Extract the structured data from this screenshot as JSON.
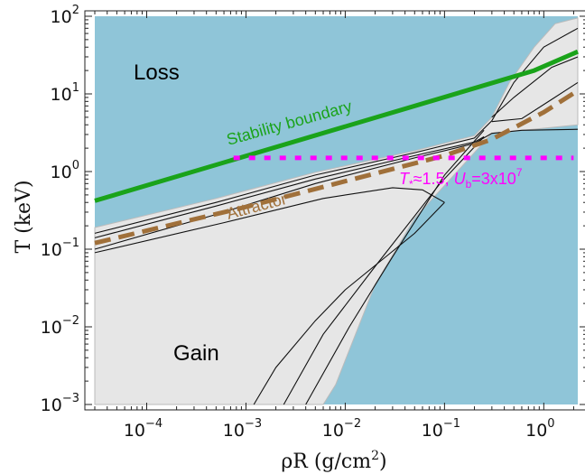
{
  "chart_data": {
    "type": "line",
    "title": "",
    "xlabel": "ρR (g/cm²)",
    "xlabel_base": "ρR (g/cm",
    "xlabel_sup": "2",
    "xlabel_end": ")",
    "ylabel": "T (keV)",
    "x_scale": "log",
    "y_scale": "log",
    "xlim": [
      3e-05,
      2.2
    ],
    "ylim": [
      0.001,
      100
    ],
    "x_ticks": [
      {
        "value": 0.0001,
        "base": "10",
        "exp": "−4"
      },
      {
        "value": 0.001,
        "base": "10",
        "exp": "−3"
      },
      {
        "value": 0.01,
        "base": "10",
        "exp": "−2"
      },
      {
        "value": 0.1,
        "base": "10",
        "exp": "−1"
      },
      {
        "value": 1,
        "base": "10",
        "exp": "0"
      }
    ],
    "y_ticks": [
      {
        "value": 0.001,
        "base": "10",
        "exp": "−3"
      },
      {
        "value": 0.01,
        "base": "10",
        "exp": "−2"
      },
      {
        "value": 0.1,
        "base": "10",
        "exp": "−1"
      },
      {
        "value": 1,
        "base": "10",
        "exp": "0"
      },
      {
        "value": 10,
        "base": "10",
        "exp": "1"
      },
      {
        "value": 100,
        "base": "10",
        "exp": "2"
      }
    ],
    "grid": false,
    "regions": {
      "loss_label": "Loss",
      "gain_label": "Gain",
      "loss_color": "#8fc5d8",
      "gain_color": "#e6e6e6"
    },
    "series": [
      {
        "name": "Stability boundary",
        "style": "solid",
        "color": "#1aa31a",
        "x": [
          3e-05,
          0.8,
          2.2
        ],
        "y": [
          0.42,
          20,
          35
        ]
      },
      {
        "name": "Attractor",
        "style": "dashed",
        "color": "#a0703a",
        "x": [
          3e-05,
          0.001,
          0.01,
          0.1,
          0.3,
          1,
          2.2
        ],
        "y": [
          0.12,
          0.35,
          0.75,
          1.6,
          2.6,
          5.8,
          11
        ]
      },
      {
        "name": "T*≈1.5, Ub=3x10^7",
        "style": "dotted",
        "color": "#ff00ff",
        "x": [
          0.00075,
          2.0
        ],
        "y": [
          1.5,
          1.5
        ]
      }
    ],
    "contours": [
      {
        "x": [
          3e-05,
          0.0005,
          0.005,
          0.05,
          0.2,
          0.3,
          0.5,
          1,
          2.2
        ],
        "y": [
          0.16,
          0.4,
          0.9,
          1.75,
          2.7,
          4.5,
          14,
          40,
          70
        ]
      },
      {
        "x": [
          3e-05,
          0.0005,
          0.005,
          0.05,
          0.2,
          0.25
        ],
        "y": [
          0.14,
          0.36,
          0.8,
          1.6,
          2.4,
          2.8
        ]
      },
      {
        "x": [
          3e-05,
          0.0005,
          0.005,
          0.05,
          0.2,
          0.3,
          0.6,
          2.2
        ],
        "y": [
          0.1,
          0.28,
          0.7,
          1.5,
          2.3,
          3.1,
          3.4,
          3.5
        ]
      },
      {
        "x": [
          3e-05,
          0.0006,
          0.006,
          0.03,
          0.06,
          0.1
        ],
        "y": [
          0.09,
          0.22,
          0.45,
          0.62,
          0.58,
          0.4
        ]
      },
      {
        "x": [
          0.1,
          0.05,
          0.01,
          0.005,
          0.002,
          0.0012
        ],
        "y": [
          0.4,
          0.16,
          0.03,
          0.012,
          0.003,
          0.001
        ]
      },
      {
        "x": [
          0.25,
          0.09,
          0.02,
          0.006,
          0.0024
        ],
        "y": [
          2.8,
          0.7,
          0.06,
          0.008,
          0.001
        ]
      },
      {
        "x": [
          0.25,
          0.1,
          0.03,
          0.011,
          0.004
        ],
        "y": [
          3.4,
          0.9,
          0.08,
          0.01,
          0.001
        ]
      },
      {
        "x": [
          0.3,
          0.5,
          1.2,
          2.2
        ],
        "y": [
          5.0,
          9.0,
          22,
          30
        ]
      },
      {
        "x": [
          0.3,
          0.6,
          1.2,
          2.2
        ],
        "y": [
          4.4,
          4.8,
          8.5,
          14
        ]
      }
    ],
    "gain_boundary": {
      "x": [
        3e-05,
        0.0005,
        0.005,
        0.05,
        0.2,
        0.3,
        0.45,
        0.8,
        1.3,
        2.2,
        2.2,
        0.3,
        0.05,
        0.02,
        0.008,
        0.006,
        3e-05
      ],
      "y": [
        0.19,
        0.45,
        0.98,
        1.85,
        2.9,
        5.0,
        14,
        40,
        80,
        95,
        4.0,
        3.1,
        0.25,
        0.035,
        0.0018,
        0.001,
        0.001
      ]
    },
    "annotations": {
      "stability_label": "Stability boundary",
      "attractor_label": "Attractor",
      "tstar_text": {
        "T": "T",
        "sub1": "*",
        "approx": "≈1.5, ",
        "U": "U",
        "sub2": "b",
        "eq": "=3x10",
        "sup": "7"
      }
    }
  }
}
